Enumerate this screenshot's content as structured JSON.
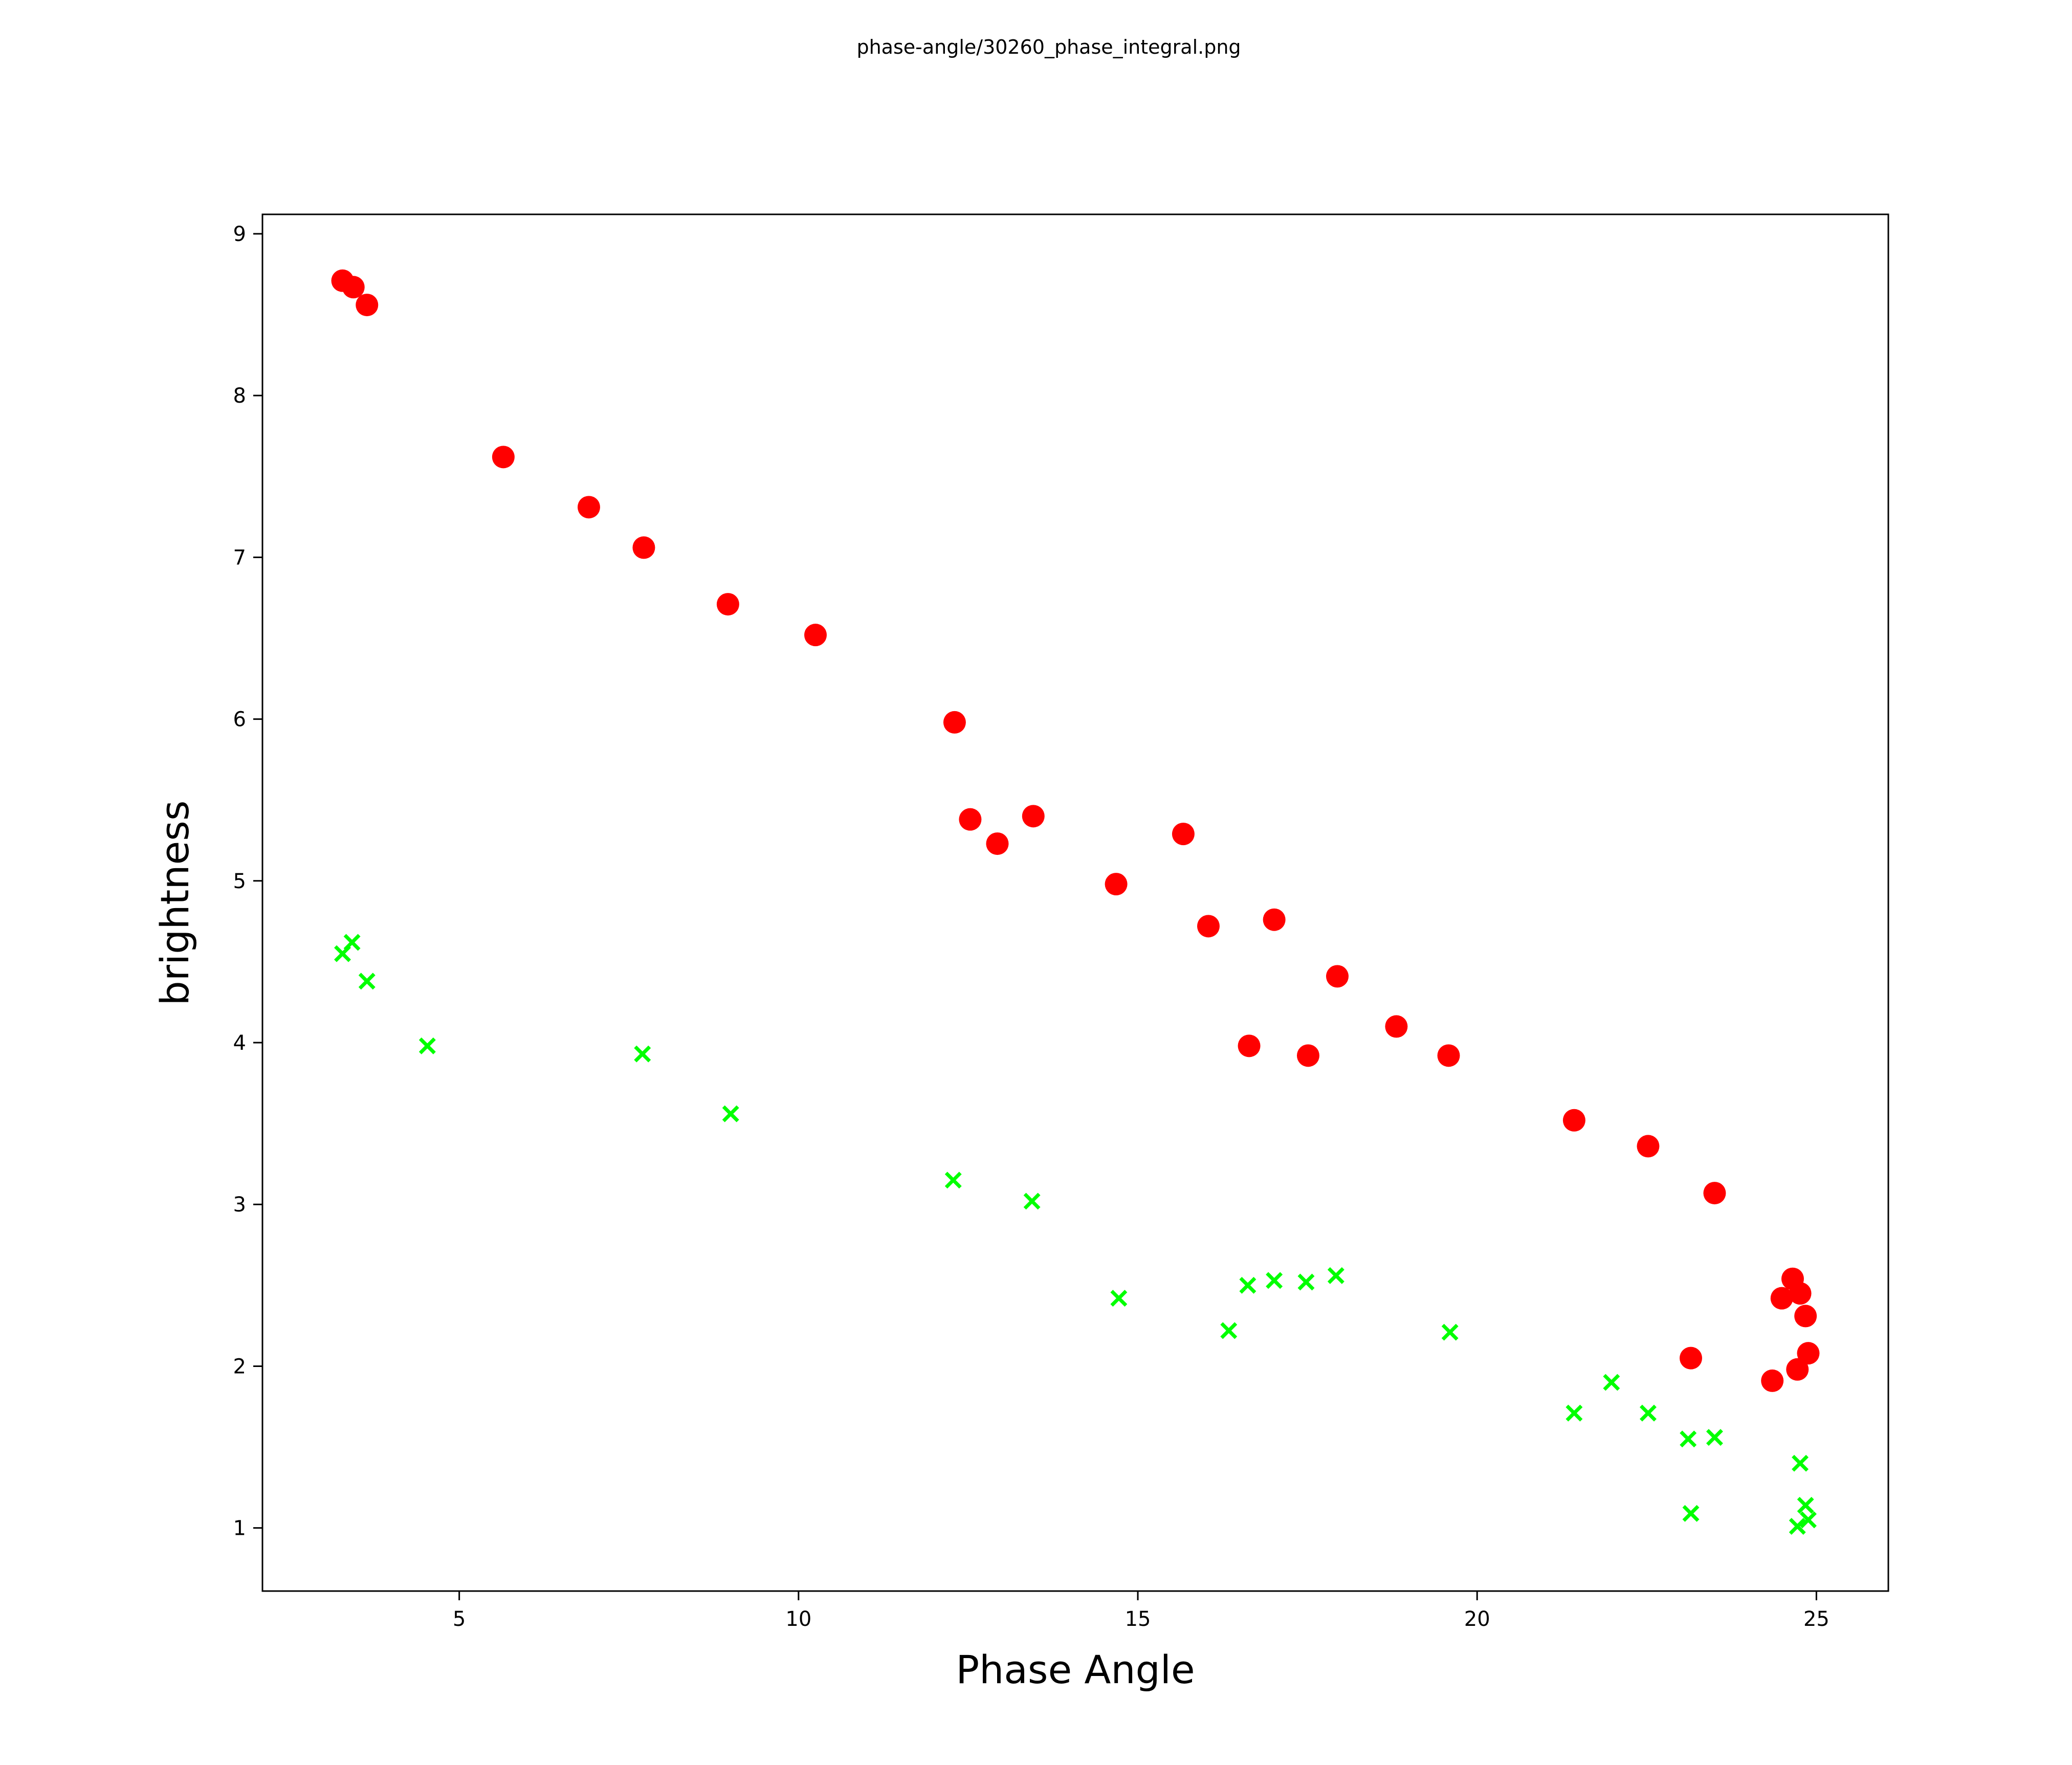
{
  "chart_data": {
    "type": "scatter",
    "title": "phase-angle/30260_phase_integral.png",
    "xlabel": "Phase Angle",
    "ylabel": "brightness",
    "xlim": [
      2.1,
      26.06
    ],
    "ylim": [
      0.61,
      9.12
    ],
    "xticks": [
      5,
      10,
      15,
      20,
      25
    ],
    "yticks": [
      1,
      2,
      3,
      4,
      5,
      6,
      7,
      8,
      9
    ],
    "grid": false,
    "legend": "none",
    "series": [
      {
        "name": "red-circles",
        "marker": "circle",
        "color": "#ff0000",
        "points": [
          [
            3.28,
            8.71
          ],
          [
            3.44,
            8.67
          ],
          [
            3.64,
            8.56
          ],
          [
            5.65,
            7.62
          ],
          [
            6.91,
            7.31
          ],
          [
            7.72,
            7.06
          ],
          [
            8.96,
            6.71
          ],
          [
            10.25,
            6.52
          ],
          [
            12.3,
            5.98
          ],
          [
            12.53,
            5.38
          ],
          [
            12.93,
            5.23
          ],
          [
            13.46,
            5.4
          ],
          [
            14.68,
            4.98
          ],
          [
            15.67,
            5.29
          ],
          [
            16.04,
            4.72
          ],
          [
            17.01,
            4.76
          ],
          [
            16.64,
            3.98
          ],
          [
            17.51,
            3.92
          ],
          [
            17.94,
            4.41
          ],
          [
            18.81,
            4.1
          ],
          [
            19.58,
            3.92
          ],
          [
            21.43,
            3.52
          ],
          [
            22.52,
            3.36
          ],
          [
            23.5,
            3.07
          ],
          [
            24.65,
            2.54
          ],
          [
            24.49,
            2.42
          ],
          [
            24.76,
            2.45
          ],
          [
            24.84,
            2.31
          ],
          [
            24.88,
            2.08
          ],
          [
            23.15,
            2.05
          ],
          [
            24.72,
            1.98
          ],
          [
            24.35,
            1.91
          ]
        ]
      },
      {
        "name": "green-crosses",
        "marker": "x",
        "color": "#00ff00",
        "points": [
          [
            3.28,
            4.55
          ],
          [
            3.42,
            4.62
          ],
          [
            3.64,
            4.38
          ],
          [
            4.53,
            3.98
          ],
          [
            7.7,
            3.93
          ],
          [
            9.0,
            3.56
          ],
          [
            12.28,
            3.15
          ],
          [
            13.44,
            3.02
          ],
          [
            14.72,
            2.42
          ],
          [
            16.34,
            2.22
          ],
          [
            16.62,
            2.5
          ],
          [
            17.01,
            2.53
          ],
          [
            17.48,
            2.52
          ],
          [
            17.92,
            2.56
          ],
          [
            19.6,
            2.21
          ],
          [
            21.43,
            1.71
          ],
          [
            21.98,
            1.9
          ],
          [
            22.52,
            1.71
          ],
          [
            23.11,
            1.55
          ],
          [
            23.5,
            1.56
          ],
          [
            23.15,
            1.09
          ],
          [
            24.76,
            1.4
          ],
          [
            24.84,
            1.14
          ],
          [
            24.72,
            1.01
          ],
          [
            24.88,
            1.05
          ]
        ]
      }
    ]
  }
}
